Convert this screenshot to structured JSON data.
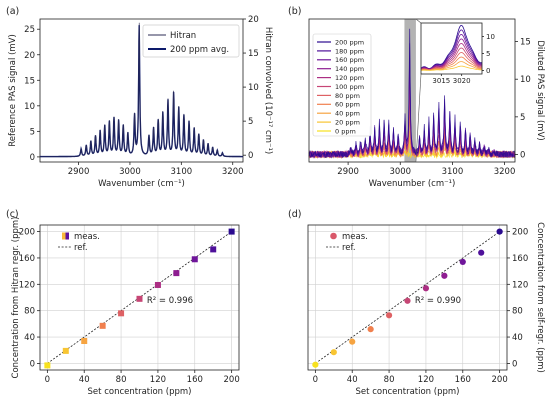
{
  "colors": {
    "hitran": "#2c2c54",
    "avg": "#0d1a6b",
    "gradient": [
      "#f7e11e",
      "#f8b93b",
      "#f2844b",
      "#d9586a",
      "#b4337f",
      "#8a1a93",
      "#5d129e",
      "#2a0a8f"
    ]
  },
  "chart_data": [
    {
      "panel": "(a)",
      "type": "line",
      "xlabel": "Wavenumber (cm⁻¹)",
      "ylabel_left": "Reference PAS signal (mV)",
      "ylabel_right": "Hitran convolved (10⁻¹⁷ cm⁻¹)",
      "xlim": [
        2825,
        3220
      ],
      "ylim_left": [
        -1,
        27
      ],
      "ylim_right": [
        -1,
        20
      ],
      "xticks": [
        2900,
        3000,
        3100,
        3200
      ],
      "yticks_left": [
        0,
        5,
        10,
        15,
        20,
        25
      ],
      "yticks_right": [
        0,
        5,
        10,
        15,
        20
      ],
      "series": [
        {
          "name": "Hitran"
        },
        {
          "name": "200 ppm avg."
        }
      ],
      "peaks": [
        {
          "x": 2905,
          "y": 1.5
        },
        {
          "x": 2915,
          "y": 2.2
        },
        {
          "x": 2924,
          "y": 3.0
        },
        {
          "x": 2933,
          "y": 4.0
        },
        {
          "x": 2942,
          "y": 5.0
        },
        {
          "x": 2951,
          "y": 6.0
        },
        {
          "x": 2960,
          "y": 6.8
        },
        {
          "x": 2969,
          "y": 7.5
        },
        {
          "x": 2978,
          "y": 7.0
        },
        {
          "x": 2987,
          "y": 6.0
        },
        {
          "x": 2996,
          "y": 4.5
        },
        {
          "x": 3009,
          "y": 8.0
        },
        {
          "x": 3018,
          "y": 26.0
        },
        {
          "x": 3037,
          "y": 4.0
        },
        {
          "x": 3046,
          "y": 5.5
        },
        {
          "x": 3055,
          "y": 7.0
        },
        {
          "x": 3064,
          "y": 8.5
        },
        {
          "x": 3074,
          "y": 11.0
        },
        {
          "x": 3085,
          "y": 12.5
        },
        {
          "x": 3095,
          "y": 9.5
        },
        {
          "x": 3105,
          "y": 8.0
        },
        {
          "x": 3115,
          "y": 6.8
        },
        {
          "x": 3125,
          "y": 5.5
        },
        {
          "x": 3134,
          "y": 4.3
        },
        {
          "x": 3143,
          "y": 3.2
        },
        {
          "x": 3152,
          "y": 2.5
        },
        {
          "x": 3161,
          "y": 1.8
        },
        {
          "x": 3170,
          "y": 1.2
        },
        {
          "x": 3180,
          "y": 0.7
        }
      ]
    },
    {
      "panel": "(b)",
      "type": "line",
      "xlabel": "Wavenumber (cm⁻¹)",
      "ylabel_right": "Diluted PAS signal (mV)",
      "xlim": [
        2825,
        3220
      ],
      "ylim": [
        -1,
        18
      ],
      "xticks": [
        2900,
        3000,
        3100,
        3200
      ],
      "yticks": [
        0,
        5,
        10,
        15
      ],
      "series": [
        {
          "name": "200 ppm",
          "scale": 1.0
        },
        {
          "name": "180 ppm",
          "scale": 0.9
        },
        {
          "name": "160 ppm",
          "scale": 0.8
        },
        {
          "name": "140 ppm",
          "scale": 0.7
        },
        {
          "name": "120 ppm",
          "scale": 0.6
        },
        {
          "name": "100 ppm",
          "scale": 0.5
        },
        {
          "name": "80 ppm",
          "scale": 0.4
        },
        {
          "name": "60 ppm",
          "scale": 0.3
        },
        {
          "name": "40 ppm",
          "scale": 0.2
        },
        {
          "name": "20 ppm",
          "scale": 0.1
        },
        {
          "name": "0 ppm",
          "scale": 0.0
        }
      ],
      "highlight_band": [
        3008,
        3030
      ],
      "inset": {
        "xlim": [
          3010,
          3025
        ],
        "ylim": [
          -1,
          14
        ],
        "xticks": [
          3015,
          3020
        ],
        "yticks": [
          0,
          5,
          10
        ],
        "peak_x": 3020,
        "peak_y_at_200ppm": 13
      }
    },
    {
      "panel": "(c)",
      "type": "scatter",
      "xlabel": "Set concentration (ppm)",
      "ylabel": "Concentration from Hitran regr. (ppm)",
      "xlim": [
        -8,
        208
      ],
      "ylim": [
        -10,
        210
      ],
      "xticks": [
        0,
        40,
        80,
        120,
        160,
        200
      ],
      "yticks": [
        0,
        40,
        80,
        120,
        160,
        200
      ],
      "marker": "square",
      "legend": [
        "meas.",
        "ref."
      ],
      "annotation": "R² = 0.996",
      "x": [
        0,
        20,
        40,
        60,
        80,
        100,
        120,
        140,
        160,
        180,
        200
      ],
      "y": [
        -3,
        19,
        34,
        57,
        76,
        98,
        119,
        137,
        158,
        173,
        200
      ]
    },
    {
      "panel": "(d)",
      "type": "scatter",
      "xlabel": "Set concentration (ppm)",
      "ylabel": "Concentration from self-regr. (ppm)",
      "xlim": [
        -8,
        208
      ],
      "ylim": [
        -10,
        210
      ],
      "xticks": [
        0,
        40,
        80,
        120,
        160,
        200
      ],
      "yticks": [
        0,
        40,
        80,
        120,
        160,
        200
      ],
      "marker": "circle",
      "legend": [
        "meas.",
        "ref."
      ],
      "annotation": "R² = 0.990",
      "x": [
        0,
        20,
        40,
        60,
        80,
        100,
        120,
        140,
        160,
        180,
        200
      ],
      "y": [
        -2,
        17,
        33,
        52,
        73,
        95,
        114,
        133,
        154,
        168,
        200
      ]
    }
  ]
}
